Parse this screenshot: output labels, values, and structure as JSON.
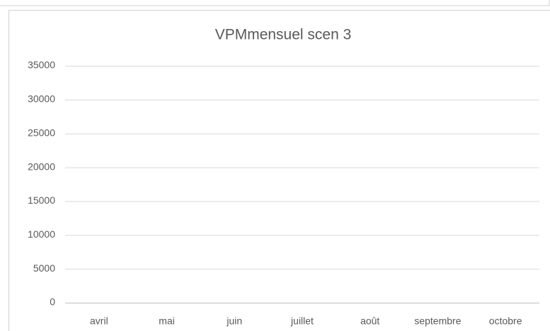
{
  "chart_data": {
    "type": "line",
    "title": "VPMmensuel scen 3",
    "categories": [
      "avril",
      "mai",
      "juin",
      "juillet",
      "août",
      "septembre",
      "octobre"
    ],
    "values": [
      null,
      null,
      null,
      null,
      null,
      null,
      null
    ],
    "color": "#4472c4",
    "ylim": [
      0,
      35000
    ],
    "yticks": [
      0,
      5000,
      10000,
      15000,
      20000,
      25000,
      30000,
      35000
    ],
    "grid": true
  }
}
